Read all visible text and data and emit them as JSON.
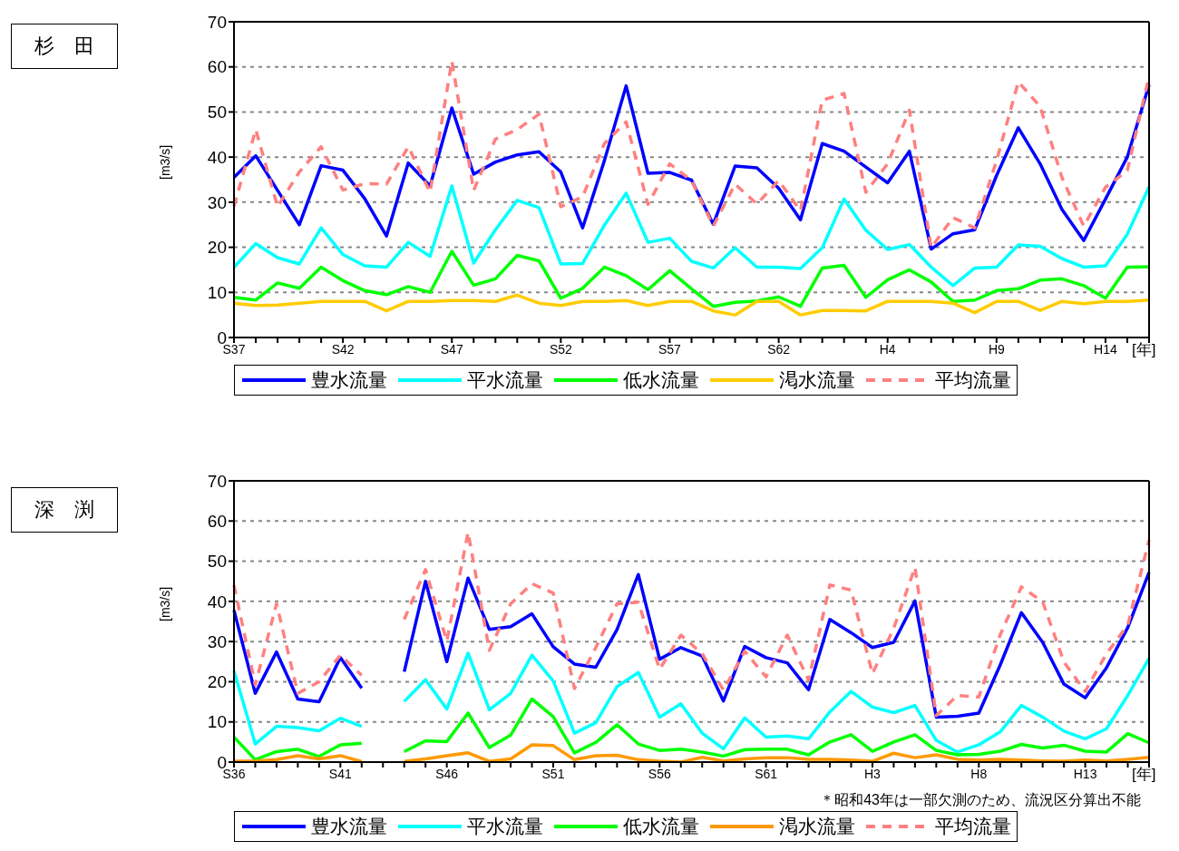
{
  "chart_data": [
    {
      "type": "line",
      "title": "杉　田",
      "ylabel": "[m3/s]",
      "xlabel": "[年]",
      "ylim": [
        0,
        70
      ],
      "yticks": [
        0,
        10,
        20,
        30,
        40,
        50,
        60,
        70
      ],
      "grid": "y",
      "legend": "bottom",
      "categories": [
        "S37",
        null,
        null,
        null,
        null,
        "S42",
        null,
        null,
        null,
        null,
        "S47",
        null,
        null,
        null,
        null,
        "S52",
        null,
        null,
        null,
        null,
        "S57",
        null,
        null,
        null,
        null,
        "S62",
        null,
        null,
        null,
        null,
        "H4",
        null,
        null,
        null,
        null,
        "H9",
        null,
        null,
        null,
        null,
        "H14",
        null,
        null
      ],
      "series": [
        {
          "name": "豊水流量",
          "color": "#0000ff",
          "values": [
            35.5,
            40.3,
            32.6,
            25.0,
            38.1,
            37.1,
            30.8,
            22.5,
            38.7,
            33.6,
            50.9,
            36.2,
            38.9,
            40.5,
            41.2,
            36.7,
            24.3,
            39.2,
            55.8,
            36.4,
            36.6,
            34.9,
            25.1,
            38.0,
            37.6,
            33.1,
            26.1,
            43.0,
            41.3,
            37.8,
            34.3,
            41.3,
            19.6,
            23.0,
            23.9,
            35.9,
            46.5,
            38.5,
            28.4,
            21.5,
            30.7,
            40.0,
            56.0
          ]
        },
        {
          "name": "平水流量",
          "color": "#00ffff",
          "values": [
            15.6,
            20.8,
            17.7,
            16.3,
            24.3,
            18.4,
            15.9,
            15.6,
            21.1,
            18.0,
            33.6,
            16.5,
            23.9,
            30.4,
            28.8,
            16.3,
            16.4,
            24.9,
            32.0,
            21.1,
            22.0,
            16.9,
            15.4,
            19.9,
            15.6,
            15.6,
            15.3,
            19.9,
            30.7,
            23.8,
            19.5,
            20.6,
            15.6,
            11.5,
            15.4,
            15.6,
            20.5,
            20.2,
            17.5,
            15.6,
            15.9,
            22.9,
            33.4
          ]
        },
        {
          "name": "低水流量",
          "color": "#00ff00",
          "values": [
            8.9,
            8.3,
            12.1,
            10.9,
            15.6,
            12.6,
            10.4,
            9.5,
            11.3,
            10.0,
            19.1,
            11.6,
            13.0,
            18.2,
            17.0,
            8.7,
            10.9,
            15.6,
            13.7,
            10.6,
            14.8,
            10.8,
            6.9,
            7.8,
            8.1,
            9.0,
            6.9,
            15.4,
            16.0,
            8.9,
            12.8,
            15.0,
            12.3,
            8.0,
            8.3,
            10.4,
            10.8,
            12.7,
            13.0,
            11.5,
            8.7,
            15.6,
            15.7
          ]
        },
        {
          "name": "渇水流量",
          "color": "#ffcc00",
          "values": [
            7.6,
            7.1,
            7.2,
            7.6,
            8.0,
            8.0,
            8.0,
            5.9,
            8.0,
            8.0,
            8.2,
            8.2,
            8.0,
            9.4,
            7.6,
            7.1,
            8.0,
            8.0,
            8.2,
            7.1,
            8.0,
            8.0,
            5.9,
            5.0,
            8.0,
            8.0,
            5.0,
            6.0,
            6.0,
            5.9,
            8.0,
            8.0,
            8.0,
            7.6,
            5.5,
            8.0,
            8.0,
            6.0,
            8.0,
            7.5,
            8.0,
            8.0,
            8.3
          ]
        },
        {
          "name": "平均流量",
          "color": "#ff8080",
          "line_style": "dashed",
          "values": [
            29.1,
            46.1,
            29.0,
            36.7,
            42.3,
            32.7,
            34.1,
            34.0,
            42.3,
            32.2,
            61.3,
            32.6,
            44.0,
            46.1,
            49.5,
            29.0,
            31.2,
            43.0,
            47.8,
            29.5,
            38.5,
            34.8,
            24.7,
            34.0,
            29.6,
            34.8,
            28.1,
            52.6,
            54.1,
            32.2,
            38.5,
            50.4,
            19.9,
            26.6,
            24.3,
            39.2,
            56.7,
            51.2,
            35.5,
            24.7,
            33.3,
            37.0,
            57.9
          ]
        }
      ]
    },
    {
      "type": "line",
      "title": "深　渕",
      "ylabel": "[m3/s]",
      "xlabel": "[年]",
      "ylim": [
        0,
        70
      ],
      "yticks": [
        0,
        10,
        20,
        30,
        40,
        50,
        60,
        70
      ],
      "grid": "y",
      "legend": "bottom",
      "annotations": [
        "＊昭和43年は一部欠測のため、流況区分算出不能"
      ],
      "categories": [
        "S36",
        null,
        null,
        null,
        null,
        "S41",
        null,
        null,
        null,
        null,
        "S46",
        null,
        null,
        null,
        null,
        "S51",
        null,
        null,
        null,
        null,
        "S56",
        null,
        null,
        null,
        null,
        "S61",
        null,
        null,
        null,
        null,
        "H3",
        null,
        null,
        null,
        null,
        "H8",
        null,
        null,
        null,
        null,
        "H13",
        null,
        null,
        null
      ],
      "series": [
        {
          "name": "豊水流量",
          "color": "#0000ff",
          "values": [
            37.8,
            17.1,
            27.4,
            15.7,
            15.0,
            26.0,
            18.4,
            null,
            22.5,
            45.0,
            25.0,
            45.8,
            33.0,
            33.7,
            36.9,
            28.7,
            24.4,
            23.6,
            33.0,
            46.7,
            25.6,
            28.5,
            26.4,
            15.2,
            28.8,
            26.0,
            24.7,
            18.0,
            35.5,
            32.2,
            28.5,
            29.8,
            40.1,
            11.2,
            11.4,
            12.2,
            24.1,
            37.2,
            29.8,
            19.4,
            16.0,
            23.5,
            33.5,
            47.2
          ]
        },
        {
          "name": "平水流量",
          "color": "#00ffff",
          "values": [
            22.7,
            4.5,
            8.9,
            8.6,
            7.8,
            10.9,
            8.9,
            null,
            15.1,
            20.5,
            13.2,
            27.1,
            13.0,
            17.1,
            26.6,
            20.2,
            7.2,
            9.8,
            18.8,
            22.3,
            11.2,
            14.5,
            7.2,
            3.3,
            11.0,
            6.2,
            6.5,
            5.8,
            12.5,
            17.6,
            13.7,
            12.3,
            14.1,
            5.4,
            2.5,
            4.3,
            7.5,
            14.1,
            11.2,
            7.7,
            5.8,
            8.3,
            16.6,
            25.8
          ]
        },
        {
          "name": "低水流量",
          "color": "#00ff00",
          "values": [
            6.2,
            0.6,
            2.6,
            3.2,
            1.4,
            4.3,
            4.7,
            null,
            2.6,
            5.3,
            5.1,
            12.2,
            3.6,
            6.7,
            15.7,
            11.3,
            2.3,
            4.9,
            9.3,
            4.5,
            2.9,
            3.2,
            2.5,
            1.5,
            3.1,
            3.2,
            3.2,
            1.8,
            5.0,
            6.8,
            2.7,
            5.0,
            6.8,
            2.9,
            1.8,
            1.9,
            2.7,
            4.4,
            3.5,
            4.2,
            2.7,
            2.5,
            7.1,
            4.8
          ]
        },
        {
          "name": "渇水流量",
          "color": "#ff9900",
          "values": [
            0.2,
            0.2,
            0.6,
            1.6,
            0.8,
            1.6,
            0.1,
            null,
            0.2,
            0.8,
            1.6,
            2.3,
            0.2,
            0.8,
            4.3,
            4.1,
            0.6,
            1.6,
            1.7,
            0.6,
            0.2,
            0.0,
            1.2,
            0.3,
            0.8,
            1.1,
            1.1,
            0.7,
            0.7,
            0.5,
            0.2,
            2.2,
            1.1,
            1.8,
            0.7,
            0.5,
            0.7,
            0.5,
            0.3,
            0.2,
            0.5,
            0.3,
            0.7,
            1.2
          ]
        },
        {
          "name": "平均流量",
          "color": "#ff8080",
          "line_style": "dashed",
          "values": [
            44.0,
            19.2,
            39.4,
            17.1,
            20.0,
            26.6,
            21.6,
            null,
            35.5,
            47.9,
            30.1,
            57.2,
            27.8,
            39.4,
            44.4,
            42.1,
            18.3,
            28.5,
            39.4,
            39.8,
            23.1,
            31.6,
            27.0,
            17.9,
            27.6,
            21.2,
            31.6,
            20.4,
            44.1,
            42.8,
            22.0,
            33.3,
            48.5,
            11.6,
            16.6,
            16.2,
            31.6,
            43.6,
            39.9,
            24.9,
            17.6,
            27.0,
            34.1,
            55.3
          ]
        }
      ]
    }
  ]
}
